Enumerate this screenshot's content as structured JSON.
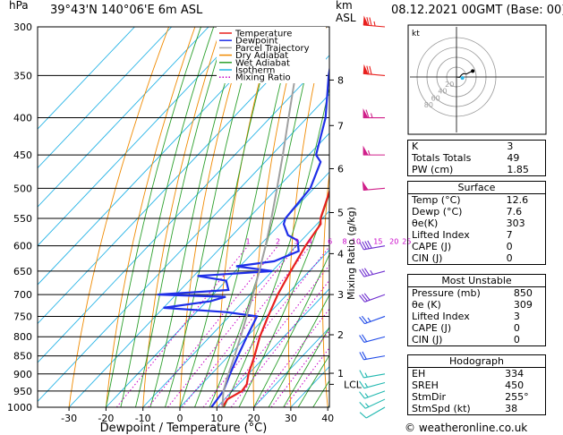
{
  "chart_data": {
    "type": "skew-t log-p sounding",
    "header": {
      "unit_left": "hPa",
      "location": "39°43'N  140°06'E  6m  ASL",
      "unit_right_line1": "km",
      "unit_right_line2": "ASL",
      "datetime": "08.12.2021  00GMT  (Base: 00)"
    },
    "xlabel": "Dewpoint / Temperature (°C)",
    "ylabel_right": "Mixing Ratio (g/kg)",
    "x_ticks": [
      -30,
      -20,
      -10,
      0,
      10,
      20,
      30,
      40
    ],
    "pressure_levels": [
      300,
      350,
      400,
      450,
      500,
      550,
      600,
      650,
      700,
      750,
      800,
      850,
      900,
      950,
      1000
    ],
    "height_km_ticks": [
      {
        "label": "1",
        "p": 898
      },
      {
        "label": "2",
        "p": 795
      },
      {
        "label": "3",
        "p": 700
      },
      {
        "label": "4",
        "p": 615
      },
      {
        "label": "5",
        "p": 540
      },
      {
        "label": "6",
        "p": 470
      },
      {
        "label": "7",
        "p": 410
      },
      {
        "label": "8",
        "p": 355
      }
    ],
    "lcl_label": "LCL",
    "lcl_pressure": 930,
    "mixing_ratio_labels": [
      "1",
      "2",
      "3",
      "4",
      "6",
      "8",
      "10",
      "15",
      "20",
      "25"
    ],
    "mixing_ratio_values": [
      1,
      2,
      3,
      4,
      6,
      8,
      10,
      15,
      20,
      25
    ],
    "legend": [
      {
        "name": "Temperature",
        "color": "#e8201e",
        "style": "solid"
      },
      {
        "name": "Dewpoint",
        "color": "#1f2fe8",
        "style": "solid"
      },
      {
        "name": "Parcel Trajectory",
        "color": "#a0a0a0",
        "style": "solid"
      },
      {
        "name": "Dry Adiabat",
        "color": "#f08a00",
        "style": "solid"
      },
      {
        "name": "Wet Adiabat",
        "color": "#2ca02c",
        "style": "solid"
      },
      {
        "name": "Isotherm",
        "color": "#27b4e6",
        "style": "solid"
      },
      {
        "name": "Mixing Ratio",
        "color": "#c800c8",
        "style": "dotted"
      }
    ],
    "series": [
      {
        "name": "Temperature",
        "color": "#e8201e",
        "points": [
          [
            1000,
            11.5
          ],
          [
            975,
            10.8
          ],
          [
            950,
            12.6
          ],
          [
            930,
            12.2
          ],
          [
            900,
            10.0
          ],
          [
            850,
            7.0
          ],
          [
            800,
            3.5
          ],
          [
            750,
            0.5
          ],
          [
            700,
            -2.5
          ],
          [
            650,
            -5.0
          ],
          [
            600,
            -7.5
          ],
          [
            560,
            -9.0
          ],
          [
            550,
            -10.5
          ],
          [
            500,
            -15.5
          ],
          [
            450,
            -21.0
          ],
          [
            400,
            -27.5
          ],
          [
            350,
            -36.0
          ],
          [
            300,
            -44.5
          ]
        ]
      },
      {
        "name": "Dewpoint",
        "color": "#1f2fe8",
        "points": [
          [
            1000,
            8.5
          ],
          [
            950,
            7.6
          ],
          [
            900,
            5.0
          ],
          [
            850,
            2.5
          ],
          [
            800,
            0.0
          ],
          [
            750,
            -2.5
          ],
          [
            740,
            -12.0
          ],
          [
            730,
            -30.0
          ],
          [
            715,
            -19.0
          ],
          [
            705,
            -16.0
          ],
          [
            700,
            -35.0
          ],
          [
            690,
            -17.0
          ],
          [
            670,
            -20.0
          ],
          [
            660,
            -29.0
          ],
          [
            650,
            -10.0
          ],
          [
            640,
            -21.0
          ],
          [
            630,
            -12.0
          ],
          [
            610,
            -8.0
          ],
          [
            590,
            -11.0
          ],
          [
            580,
            -15.0
          ],
          [
            560,
            -19.0
          ],
          [
            550,
            -20.0
          ],
          [
            500,
            -21.0
          ],
          [
            460,
            -25.0
          ],
          [
            450,
            -28.0
          ],
          [
            400,
            -35.0
          ],
          [
            350,
            -45.0
          ],
          [
            320,
            -51.0
          ]
        ]
      },
      {
        "name": "Parcel Trajectory",
        "color": "#a0a0a0",
        "points": [
          [
            1000,
            11.5
          ],
          [
            950,
            7.6
          ],
          [
            930,
            6.4
          ],
          [
            900,
            4.6
          ],
          [
            850,
            1.6
          ],
          [
            800,
            -1.7
          ],
          [
            750,
            -5.3
          ],
          [
            700,
            -9.2
          ],
          [
            650,
            -13.5
          ],
          [
            600,
            -18.3
          ],
          [
            550,
            -23.8
          ],
          [
            500,
            -30.0
          ],
          [
            450,
            -37.0
          ],
          [
            400,
            -45.0
          ],
          [
            350,
            -54.0
          ],
          [
            300,
            -64.0
          ]
        ]
      }
    ],
    "wind_barbs": [
      {
        "p": 1000,
        "dir": 240,
        "speed": 10
      },
      {
        "p": 975,
        "dir": 245,
        "speed": 15
      },
      {
        "p": 950,
        "dir": 250,
        "speed": 15
      },
      {
        "p": 925,
        "dir": 255,
        "speed": 15
      },
      {
        "p": 900,
        "dir": 260,
        "speed": 15
      },
      {
        "p": 850,
        "dir": 260,
        "speed": 20
      },
      {
        "p": 800,
        "dir": 255,
        "speed": 20
      },
      {
        "p": 750,
        "dir": 250,
        "speed": 25
      },
      {
        "p": 700,
        "dir": 250,
        "speed": 30
      },
      {
        "p": 650,
        "dir": 255,
        "speed": 35
      },
      {
        "p": 600,
        "dir": 260,
        "speed": 40
      },
      {
        "p": 500,
        "dir": 265,
        "speed": 50
      },
      {
        "p": 450,
        "dir": 270,
        "speed": 55
      },
      {
        "p": 400,
        "dir": 270,
        "speed": 65
      },
      {
        "p": 350,
        "dir": 275,
        "speed": 70
      },
      {
        "p": 300,
        "dir": 275,
        "speed": 75
      }
    ],
    "hodograph": {
      "title": "kt",
      "ring_labels": [
        "20",
        "40",
        "60",
        "80"
      ],
      "ring_speeds": [
        20,
        40,
        60,
        80
      ],
      "points": [
        [
          0,
          0
        ],
        [
          6,
          -1
        ],
        [
          10,
          4
        ],
        [
          14,
          7
        ],
        [
          20,
          6
        ],
        [
          26,
          9
        ],
        [
          33,
          12
        ]
      ],
      "storm_motion": [
        12,
        -2
      ]
    },
    "indices": {
      "general": [
        {
          "label": "K",
          "value": "3"
        },
        {
          "label": "Totals Totals",
          "value": "49"
        },
        {
          "label": "PW (cm)",
          "value": "1.85"
        }
      ],
      "surface_title": "Surface",
      "surface": [
        {
          "label": "Temp (°C)",
          "value": "12.6"
        },
        {
          "label": "Dewp (°C)",
          "value": "7.6"
        },
        {
          "label": "θe(K)",
          "value": "303"
        },
        {
          "label": "Lifted Index",
          "value": "7"
        },
        {
          "label": "CAPE (J)",
          "value": "0"
        },
        {
          "label": "CIN (J)",
          "value": "0"
        }
      ],
      "unstable_title": "Most Unstable",
      "unstable": [
        {
          "label": "Pressure (mb)",
          "value": "850"
        },
        {
          "label": "θe (K)",
          "value": "309"
        },
        {
          "label": "Lifted Index",
          "value": "3"
        },
        {
          "label": "CAPE (J)",
          "value": "0"
        },
        {
          "label": "CIN (J)",
          "value": "0"
        }
      ],
      "hodograph_title": "Hodograph",
      "hodograph": [
        {
          "label": "EH",
          "value": "334"
        },
        {
          "label": "SREH",
          "value": "450"
        },
        {
          "label": "StmDir",
          "value": "255°"
        },
        {
          "label": "StmSpd (kt)",
          "value": "38"
        }
      ]
    },
    "copyright": "© weatheronline.co.uk"
  }
}
